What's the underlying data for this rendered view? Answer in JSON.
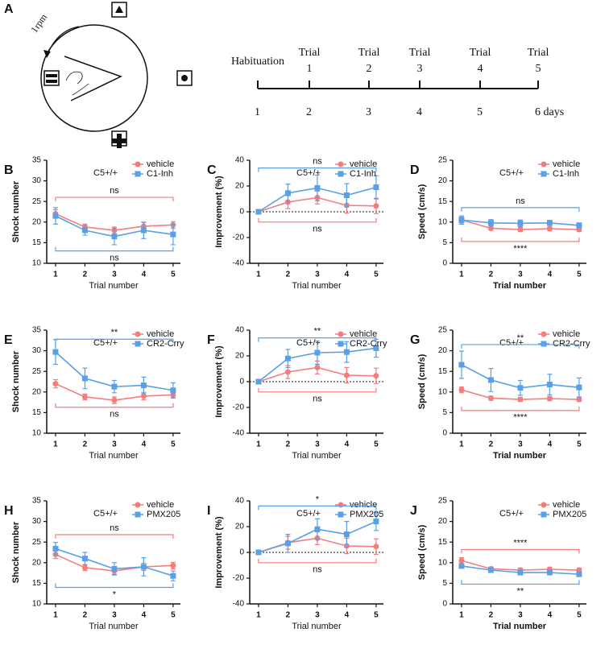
{
  "panel_a": {
    "panel": "A",
    "rotation": "1rpm",
    "events": [
      [
        "Habituation"
      ],
      [
        "Trial",
        "1"
      ],
      [
        "Trial",
        "2"
      ],
      [
        "Trial",
        "3"
      ],
      [
        "Trial",
        "4"
      ],
      [
        "Trial",
        "5"
      ]
    ],
    "days": [
      "1",
      "2",
      "3",
      "4",
      "5",
      "6 days"
    ]
  },
  "chart_data": [
    {
      "type": "line",
      "panel": "B",
      "annotation": "C5+/+",
      "ylabel": "Shock number",
      "xlabel": "Trial number",
      "x": [
        1,
        2,
        3,
        4,
        5
      ],
      "xlim": [
        0.7,
        5.25
      ],
      "ylim": [
        10,
        35
      ],
      "yticks": [
        10,
        15,
        20,
        25,
        30,
        35
      ],
      "series": [
        {
          "name": "vehicle",
          "color": "#f47c7c",
          "marker": "circle",
          "values": [
            22,
            18.8,
            18,
            19,
            19.3
          ],
          "errors": [
            1,
            0.7,
            0.8,
            0.9,
            0.8
          ]
        },
        {
          "name": "C1-Inh",
          "color": "#5aa0e6",
          "marker": "square",
          "values": [
            21.5,
            18,
            16.5,
            18,
            17
          ],
          "errors": [
            2,
            1.2,
            2,
            2,
            2.5
          ]
        }
      ],
      "brackets": [
        {
          "label": "ns",
          "y": 26,
          "series": 0
        },
        {
          "label": "ns",
          "y": 13,
          "series": 1
        }
      ]
    },
    {
      "type": "line",
      "panel": "C",
      "annotation": "C5+/+",
      "ylabel": "Improvement (%)",
      "xlabel": "Trial number",
      "x": [
        1,
        2,
        3,
        4,
        5
      ],
      "xlim": [
        0.7,
        5.25
      ],
      "ylim": [
        -40,
        40
      ],
      "yticks": [
        -40,
        -20,
        0,
        20,
        40
      ],
      "zero_line": true,
      "series": [
        {
          "name": "vehicle",
          "color": "#f47c7c",
          "marker": "circle",
          "values": [
            0,
            7.5,
            11,
            5,
            4.5
          ],
          "errors": [
            0.5,
            5,
            5,
            6,
            6
          ]
        },
        {
          "name": "C1-Inh",
          "color": "#5aa0e6",
          "marker": "square",
          "values": [
            0,
            14.5,
            18.5,
            12.8,
            19
          ],
          "errors": [
            0.5,
            7,
            10,
            9,
            9
          ]
        }
      ],
      "brackets": [
        {
          "label": "ns",
          "y": 34,
          "series": 1
        },
        {
          "label": "ns",
          "y": -8,
          "series": 0
        }
      ]
    },
    {
      "type": "line",
      "panel": "D",
      "annotation": "C5+/+",
      "ylabel": "Speed (cm/s)",
      "xlabel": "Trial number",
      "x": [
        1,
        2,
        3,
        4,
        5
      ],
      "xlim": [
        0.7,
        5.25
      ],
      "ylim": [
        0,
        25
      ],
      "yticks": [
        0,
        5,
        10,
        15,
        20,
        25
      ],
      "series": [
        {
          "name": "vehicle",
          "color": "#f47c7c",
          "marker": "circle",
          "values": [
            10.5,
            8.5,
            8.2,
            8.4,
            8.2
          ],
          "errors": [
            0.7,
            0.5,
            0.5,
            0.5,
            0.5
          ]
        },
        {
          "name": "C1-Inh",
          "color": "#5aa0e6",
          "marker": "square",
          "values": [
            10.5,
            9.8,
            9.7,
            9.8,
            9.2
          ],
          "errors": [
            1,
            0.8,
            0.8,
            0.6,
            0.6
          ]
        }
      ],
      "brackets": [
        {
          "label": "ns",
          "y": 13.5,
          "series": 1
        },
        {
          "label": "****",
          "y": 5.3,
          "series": 0
        }
      ]
    },
    {
      "type": "line",
      "panel": "E",
      "annotation": "C5+/+",
      "ylabel": "Shock number",
      "xlabel": "Trial number",
      "x": [
        1,
        2,
        3,
        4,
        5
      ],
      "xlim": [
        0.7,
        5.25
      ],
      "ylim": [
        10,
        35
      ],
      "yticks": [
        10,
        15,
        20,
        25,
        30,
        35
      ],
      "series": [
        {
          "name": "vehicle",
          "color": "#f47c7c",
          "marker": "circle",
          "values": [
            22,
            18.8,
            18,
            19,
            19.3
          ],
          "errors": [
            1,
            0.7,
            0.8,
            0.9,
            0.8
          ]
        },
        {
          "name": "CR2-Crry",
          "color": "#5aa0e6",
          "marker": "square",
          "values": [
            29.7,
            23.3,
            21.3,
            21.6,
            20.4
          ],
          "errors": [
            3,
            2.5,
            1.5,
            2,
            1.8
          ]
        }
      ],
      "brackets": [
        {
          "label": "**",
          "y": 32.8,
          "series": 1
        },
        {
          "label": "ns",
          "y": 16.3,
          "series": 0
        }
      ]
    },
    {
      "type": "line",
      "panel": "F",
      "annotation": "C5+/+",
      "ylabel": "Improvement (%)",
      "xlabel": "Trial number",
      "x": [
        1,
        2,
        3,
        4,
        5
      ],
      "xlim": [
        0.7,
        5.25
      ],
      "ylim": [
        -40,
        40
      ],
      "yticks": [
        -40,
        -20,
        0,
        20,
        40
      ],
      "zero_line": true,
      "series": [
        {
          "name": "vehicle",
          "color": "#f47c7c",
          "marker": "circle",
          "values": [
            0,
            7.5,
            11,
            5,
            4.5
          ],
          "errors": [
            0.5,
            5,
            5,
            6,
            6
          ]
        },
        {
          "name": "CR2-Crry",
          "color": "#5aa0e6",
          "marker": "square",
          "values": [
            0,
            18,
            22.5,
            23,
            26
          ],
          "errors": [
            0.5,
            7,
            9,
            8,
            7
          ]
        }
      ],
      "brackets": [
        {
          "label": "**",
          "y": 34,
          "series": 1
        },
        {
          "label": "ns",
          "y": -8,
          "series": 0
        }
      ]
    },
    {
      "type": "line",
      "panel": "G",
      "annotation": "C5+/+",
      "ylabel": "Speed (cm/s)",
      "xlabel": "Trial number",
      "x": [
        1,
        2,
        3,
        4,
        5
      ],
      "xlim": [
        0.7,
        5.25
      ],
      "ylim": [
        0,
        25
      ],
      "yticks": [
        0,
        5,
        10,
        15,
        20,
        25
      ],
      "series": [
        {
          "name": "vehicle",
          "color": "#f47c7c",
          "marker": "circle",
          "values": [
            10.5,
            8.5,
            8.2,
            8.4,
            8.2
          ],
          "errors": [
            0.7,
            0.5,
            0.5,
            0.5,
            0.5
          ]
        },
        {
          "name": "CR2-Crry",
          "color": "#5aa0e6",
          "marker": "square",
          "values": [
            16.6,
            12.9,
            11,
            11.8,
            11.1
          ],
          "errors": [
            3.3,
            2.8,
            1.8,
            2.5,
            2.3
          ]
        }
      ],
      "brackets": [
        {
          "label": "**",
          "y": 21.5,
          "series": 1
        },
        {
          "label": "****",
          "y": 5.5,
          "series": 0
        }
      ]
    },
    {
      "type": "line",
      "panel": "H",
      "annotation": "C5+/+",
      "ylabel": "Shock number",
      "xlabel": "Trial number",
      "x": [
        1,
        2,
        3,
        4,
        5
      ],
      "xlim": [
        0.7,
        5.25
      ],
      "ylim": [
        10,
        35
      ],
      "yticks": [
        10,
        15,
        20,
        25,
        30,
        35
      ],
      "series": [
        {
          "name": "vehicle",
          "color": "#f47c7c",
          "marker": "circle",
          "values": [
            22,
            18.8,
            18,
            19,
            19.3
          ],
          "errors": [
            1,
            0.7,
            0.8,
            0.9,
            0.8
          ]
        },
        {
          "name": "PMX205",
          "color": "#5aa0e6",
          "marker": "square",
          "values": [
            23.4,
            21,
            18.5,
            19,
            16.8
          ],
          "errors": [
            1.5,
            1.5,
            1.5,
            2.2,
            1.2
          ]
        }
      ],
      "brackets": [
        {
          "label": "ns",
          "y": 26.8,
          "series": 0
        },
        {
          "label": "*",
          "y": 14,
          "series": 1
        }
      ]
    },
    {
      "type": "line",
      "panel": "I",
      "annotation": "C5+/+",
      "ylabel": "Improvement (%)",
      "xlabel": "Trial number",
      "x": [
        1,
        2,
        3,
        4,
        5
      ],
      "xlim": [
        0.7,
        5.25
      ],
      "ylim": [
        -40,
        40
      ],
      "yticks": [
        -40,
        -20,
        0,
        20,
        40
      ],
      "zero_line": true,
      "series": [
        {
          "name": "vehicle",
          "color": "#f47c7c",
          "marker": "circle",
          "values": [
            0,
            7.5,
            11,
            5,
            4.5
          ],
          "errors": [
            0.5,
            5,
            5,
            6,
            6
          ]
        },
        {
          "name": "PMX205",
          "color": "#5aa0e6",
          "marker": "square",
          "values": [
            0,
            7,
            18,
            14,
            24
          ],
          "errors": [
            0.5,
            7,
            8,
            10,
            7
          ]
        }
      ],
      "brackets": [
        {
          "label": "*",
          "y": 36,
          "series": 1
        },
        {
          "label": "ns",
          "y": -8,
          "series": 0
        }
      ]
    },
    {
      "type": "line",
      "panel": "J",
      "annotation": "C5+/+",
      "ylabel": "Speed (cm/s)",
      "xlabel": "Trial number",
      "x": [
        1,
        2,
        3,
        4,
        5
      ],
      "xlim": [
        0.7,
        5.25
      ],
      "ylim": [
        0,
        25
      ],
      "yticks": [
        0,
        5,
        10,
        15,
        20,
        25
      ],
      "series": [
        {
          "name": "vehicle",
          "color": "#f47c7c",
          "marker": "circle",
          "values": [
            10.5,
            8.5,
            8.2,
            8.4,
            8.2
          ],
          "errors": [
            0.7,
            0.5,
            0.5,
            0.5,
            0.5
          ]
        },
        {
          "name": "PMX205",
          "color": "#5aa0e6",
          "marker": "square",
          "values": [
            9.2,
            8.2,
            7.6,
            7.6,
            7.2
          ],
          "errors": [
            0.5,
            0.5,
            0.5,
            0.5,
            0.4
          ]
        }
      ],
      "brackets": [
        {
          "label": "****",
          "y": 13.2,
          "series": 0
        },
        {
          "label": "**",
          "y": 4.8,
          "series": 1
        }
      ]
    }
  ]
}
